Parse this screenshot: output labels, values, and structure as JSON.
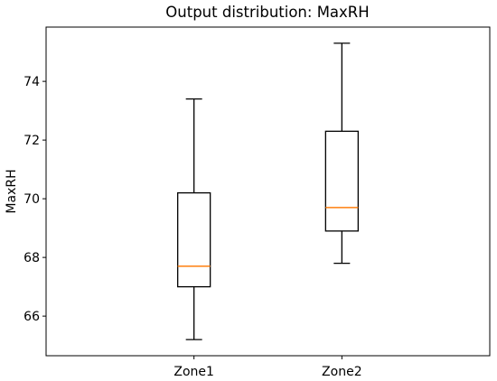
{
  "chart_data": {
    "type": "box",
    "title": "Output distribution: MaxRH",
    "xlabel": "",
    "ylabel": "MaxRH",
    "ylim": [
      64.65,
      75.85
    ],
    "yticks": [
      66,
      68,
      70,
      72,
      74
    ],
    "categories": [
      "Zone1",
      "Zone2"
    ],
    "boxes": [
      {
        "category": "Zone1",
        "whisker_low": 65.2,
        "q1": 67.0,
        "median": 67.7,
        "q3": 70.2,
        "whisker_high": 73.4
      },
      {
        "category": "Zone2",
        "whisker_low": 67.8,
        "q1": 68.9,
        "median": 69.7,
        "q3": 72.3,
        "whisker_high": 75.3
      }
    ],
    "grid": false,
    "colors": {
      "box": "#000000",
      "median": "#ff7f0e",
      "axes": "#000000"
    }
  }
}
